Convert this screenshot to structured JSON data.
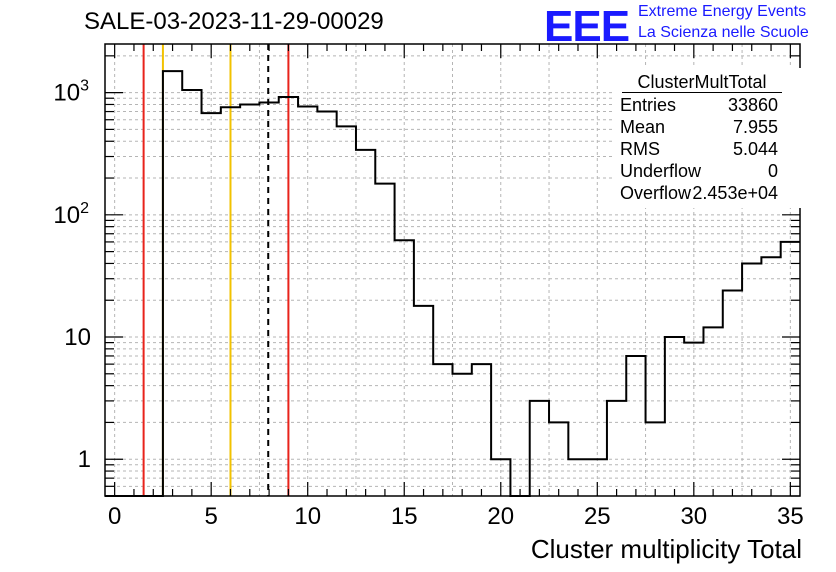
{
  "title": "SALE-03-2023-11-29-00029",
  "logo": {
    "text": "EEE",
    "line1": "Extreme Energy Events",
    "line2": "La Scienza nelle Scuole"
  },
  "stats": {
    "title": "ClusterMultTotal",
    "rows": [
      {
        "key": "Entries",
        "value": "33860"
      },
      {
        "key": "Mean",
        "value": "7.955"
      },
      {
        "key": "RMS",
        "value": "5.044"
      },
      {
        "key": "Underflow",
        "value": "0"
      },
      {
        "key": "Overflow",
        "value": "2.453e+04"
      }
    ]
  },
  "chart_data": {
    "type": "histogram",
    "xlabel": "Cluster multiplicity Total",
    "ylabel": "",
    "xlim": [
      -0.5,
      35.5
    ],
    "ylim": [
      0.5,
      2500
    ],
    "yscale": "log",
    "grid": true,
    "xticks": [
      0,
      5,
      10,
      15,
      20,
      25,
      30,
      35
    ],
    "ytick_labels": [
      "1",
      "10",
      "10^2",
      "10^3"
    ],
    "bins": {
      "edges": [
        -0.5,
        0.5,
        1.5,
        2.5,
        3.5,
        4.5,
        5.5,
        6.5,
        7.5,
        8.5,
        9.5,
        10.5,
        11.5,
        12.5,
        13.5,
        14.5,
        15.5,
        16.5,
        17.5,
        18.5,
        19.5,
        20.5,
        21.5,
        22.5,
        23.5,
        24.5,
        25.5,
        26.5,
        27.5,
        28.5,
        29.5,
        30.5,
        31.5,
        32.5,
        33.5,
        34.5,
        35.5
      ],
      "counts": [
        0,
        0,
        0,
        1500,
        1050,
        680,
        760,
        800,
        830,
        920,
        770,
        700,
        530,
        340,
        180,
        62,
        18,
        6,
        5,
        6,
        1,
        0,
        3,
        2,
        1,
        1,
        3,
        7,
        2,
        10,
        9,
        12,
        24,
        40,
        45,
        60
      ]
    },
    "vertical_lines": [
      {
        "x": 1.5,
        "color": "#e8231b",
        "style": "solid"
      },
      {
        "x": 2.5,
        "color": "#f2c200",
        "style": "solid"
      },
      {
        "x": 6.0,
        "color": "#f2c200",
        "style": "solid"
      },
      {
        "x": 7.955,
        "color": "#000000",
        "style": "dashed"
      },
      {
        "x": 9.0,
        "color": "#e8231b",
        "style": "solid"
      }
    ],
    "colors": {
      "histogram": "#000000",
      "grid": "#b5b5b5",
      "frame": "#000000"
    }
  }
}
